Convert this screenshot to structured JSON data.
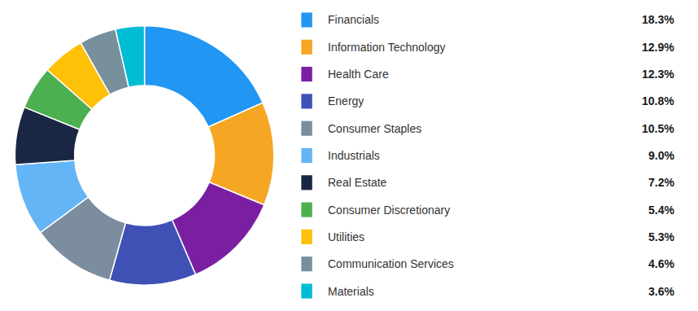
{
  "chart_data": {
    "type": "pie",
    "categories": [
      "Financials",
      "Information Technology",
      "Health Care",
      "Energy",
      "Consumer Staples",
      "Industrials",
      "Real Estate",
      "Consumer Discretionary",
      "Utilities",
      "Communication Services",
      "Materials"
    ],
    "values": [
      18.3,
      12.9,
      12.3,
      10.8,
      10.5,
      9.0,
      7.2,
      5.4,
      5.3,
      4.6,
      3.6
    ],
    "value_labels": [
      "18.3%",
      "12.9%",
      "12.3%",
      "10.8%",
      "10.5%",
      "9.0%",
      "7.2%",
      "5.4%",
      "5.3%",
      "4.6%",
      "3.6%"
    ],
    "colors": [
      "#2196F3",
      "#F5A623",
      "#7B1FA2",
      "#3F51B5",
      "#7B8D9E",
      "#64B5F6",
      "#1A2744",
      "#4CAF50",
      "#FFC107",
      "#78909C",
      "#00BCD4"
    ],
    "legend": "right"
  }
}
